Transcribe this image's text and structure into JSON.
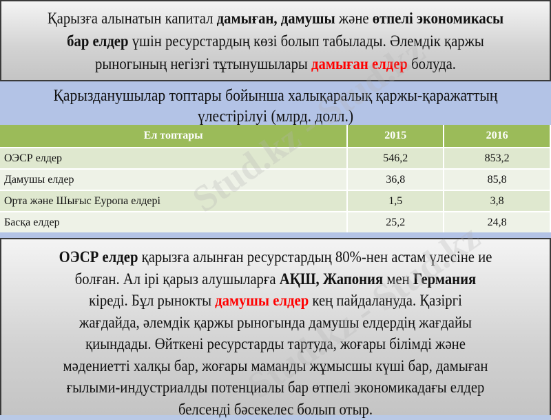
{
  "intro": {
    "lines": [
      [
        {
          "t": "Қарызға алынатын капитал ",
          "s": ""
        },
        {
          "t": "дамыған, дамушы",
          "s": "b"
        },
        {
          "t": " және ",
          "s": ""
        },
        {
          "t": "өтпелі экономикасы",
          "s": "b"
        }
      ],
      [
        {
          "t": "бар елдер",
          "s": "b"
        },
        {
          "t": " үшін ресурстардың көзі болып табылады. Әлемдік қаржы",
          "s": ""
        }
      ],
      [
        {
          "t": "рыногының негізгі тұтынушылары ",
          "s": ""
        },
        {
          "t": "дамыған елдер",
          "s": "red"
        },
        {
          "t": " болуда.",
          "s": ""
        }
      ]
    ]
  },
  "table": {
    "title_lines": [
      "Қарызданушылар топтары бойынша халықаралық қаржы-қаражаттың",
      "үлестірілуі (млрд. долл.)"
    ],
    "headers": [
      "Ел топтары",
      "2015",
      "2016"
    ],
    "rows": [
      [
        "ОЭСР елдер",
        "546,2",
        "853,2"
      ],
      [
        "Дамушы елдер",
        "36,8",
        "85,8"
      ],
      [
        "Орта және Шығыс Еуропа елдері",
        "1,5",
        "3,8"
      ],
      [
        "Басқа елдер",
        "25,2",
        "24,8"
      ]
    ],
    "header_color": "#9bbb59"
  },
  "summary": {
    "lines": [
      [
        {
          "t": "ОЭСР елдер",
          "s": "b"
        },
        {
          "t": " қарызға алынған ресурстардың 80%-нен астам үлесіне ие",
          "s": ""
        }
      ],
      [
        {
          "t": "болған. Ал ірі қарыз алушыларға ",
          "s": ""
        },
        {
          "t": "АҚШ, Жапония",
          "s": "b"
        },
        {
          "t": " мен ",
          "s": ""
        },
        {
          "t": "Германия",
          "s": "b"
        }
      ],
      [
        {
          "t": "кіреді. Бұл рынокты ",
          "s": ""
        },
        {
          "t": "дамушы елдер",
          "s": "red"
        },
        {
          "t": " кең пайдалануда. Қазіргі",
          "s": ""
        }
      ],
      [
        {
          "t": "жағдайда, әлемдік қаржы рыногында дамушы елдердің жағдайы",
          "s": ""
        }
      ],
      [
        {
          "t": "қиындады. Өйткені ресурстарды тартуда, жоғары білімді және",
          "s": ""
        }
      ],
      [
        {
          "t": "мәдениетті халқы бар, жоғары маманды жұмысшы күші бар, дамыған",
          "s": ""
        }
      ],
      [
        {
          "t": "ғылыми-индустриалды потенциалы бар өтпелі экономикадағы елдер",
          "s": ""
        }
      ],
      [
        {
          "t": "белсенді бәсекелес болып отыр.",
          "s": ""
        }
      ]
    ]
  },
  "watermark": "Stud.kz - Stud.kz",
  "colors": {
    "highlight": "#ff0000",
    "band": "#b3c3e6"
  }
}
